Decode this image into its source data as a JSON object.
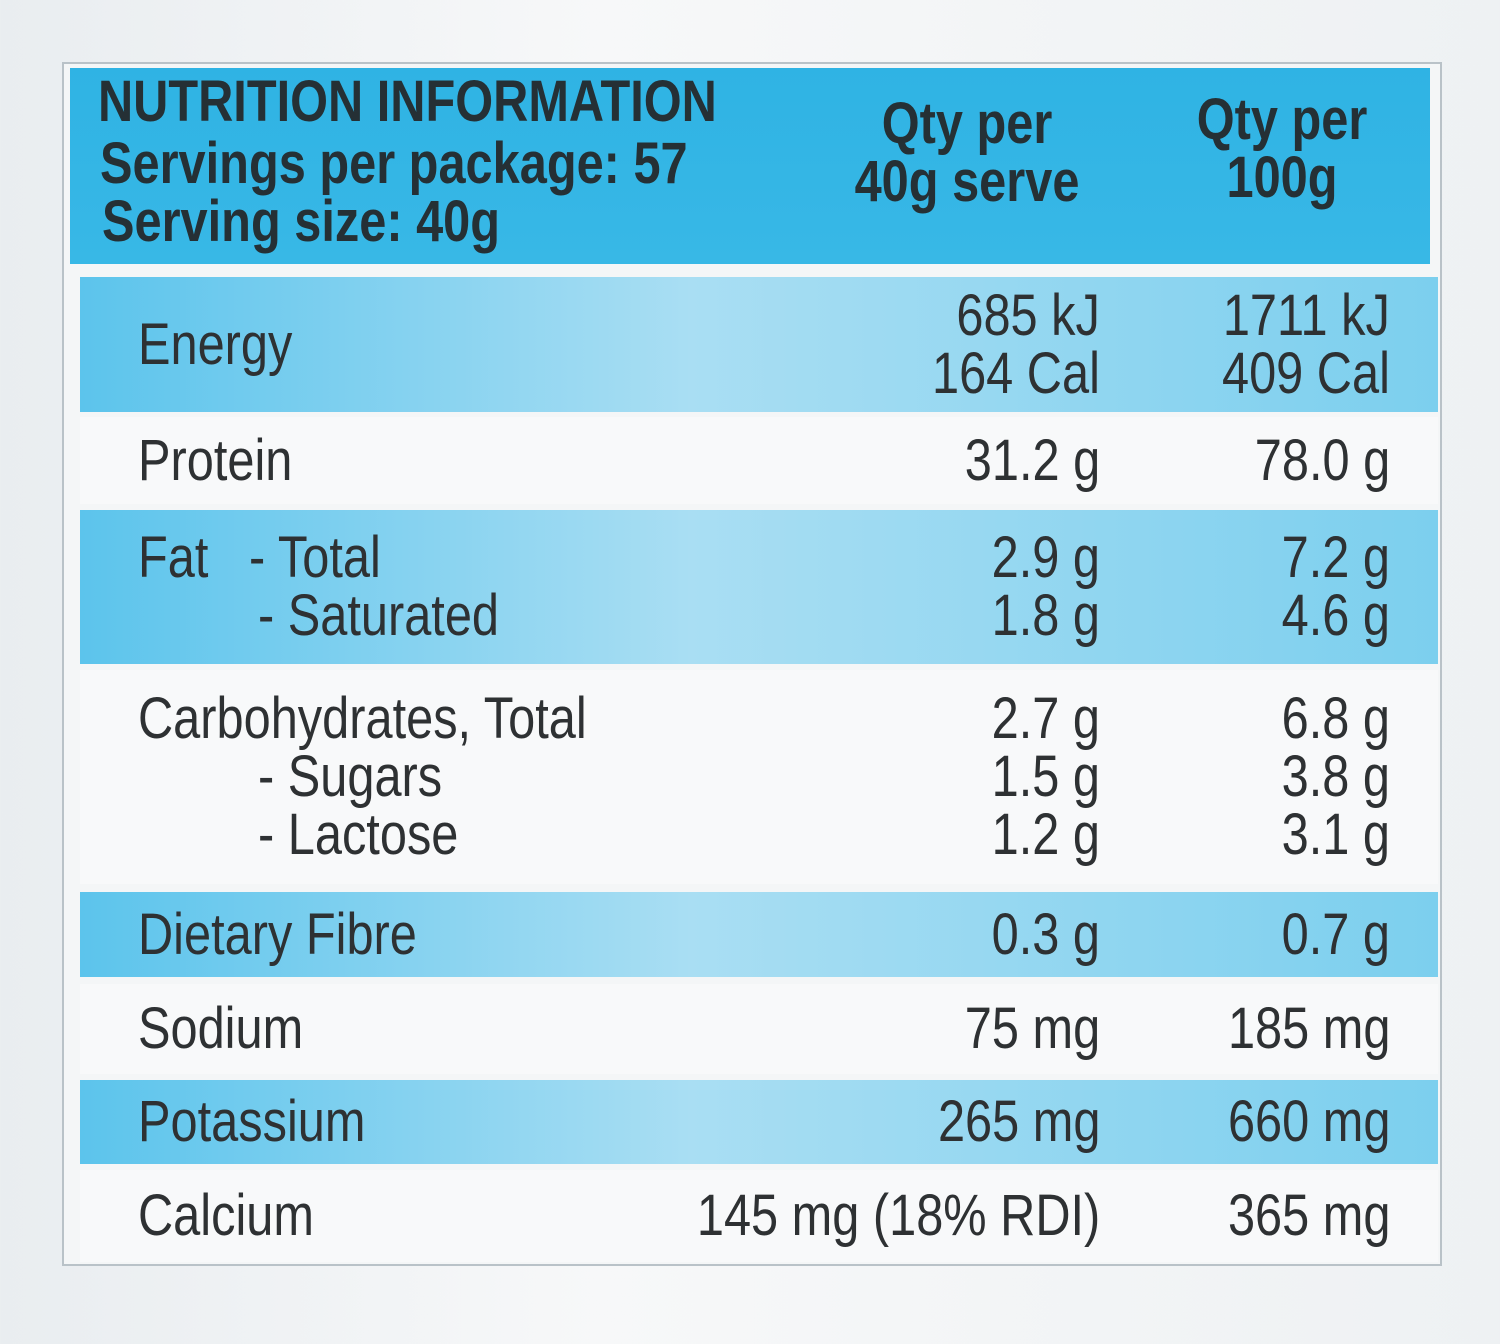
{
  "header": {
    "title": "NUTRITION INFORMATION",
    "servings": "Servings per package: 57",
    "serving_size": "Serving size: 40g",
    "col1": [
      "Qty per",
      "40g serve"
    ],
    "col2": [
      "Qty per",
      "100g"
    ]
  },
  "rows": [
    {
      "label": [
        "Energy"
      ],
      "per_serve": [
        "685 kJ",
        "164 Cal"
      ],
      "per_100g": [
        "1711 kJ",
        "409 Cal"
      ]
    },
    {
      "label": [
        "Protein"
      ],
      "per_serve": [
        "31.2 g"
      ],
      "per_100g": [
        "78.0 g"
      ]
    },
    {
      "label": [
        "Fat   - Total",
        "- Saturated"
      ],
      "per_serve": [
        "2.9 g",
        "1.8 g"
      ],
      "per_100g": [
        "7.2 g",
        "4.6 g"
      ]
    },
    {
      "label": [
        "Carbohydrates, Total",
        "- Sugars",
        "- Lactose"
      ],
      "per_serve": [
        "2.7 g",
        "1.5 g",
        "1.2 g"
      ],
      "per_100g": [
        "6.8 g",
        "3.8 g",
        "3.1 g"
      ]
    },
    {
      "label": [
        "Dietary Fibre"
      ],
      "per_serve": [
        "0.3 g"
      ],
      "per_100g": [
        "0.7 g"
      ]
    },
    {
      "label": [
        "Sodium"
      ],
      "per_serve": [
        "75 mg"
      ],
      "per_100g": [
        "185 mg"
      ]
    },
    {
      "label": [
        "Potassium"
      ],
      "per_serve": [
        "265 mg"
      ],
      "per_100g": [
        "660 mg"
      ]
    },
    {
      "label": [
        "Calcium"
      ],
      "per_serve": [
        "145 mg (18% RDI)"
      ],
      "per_100g": [
        "365 mg"
      ]
    }
  ]
}
